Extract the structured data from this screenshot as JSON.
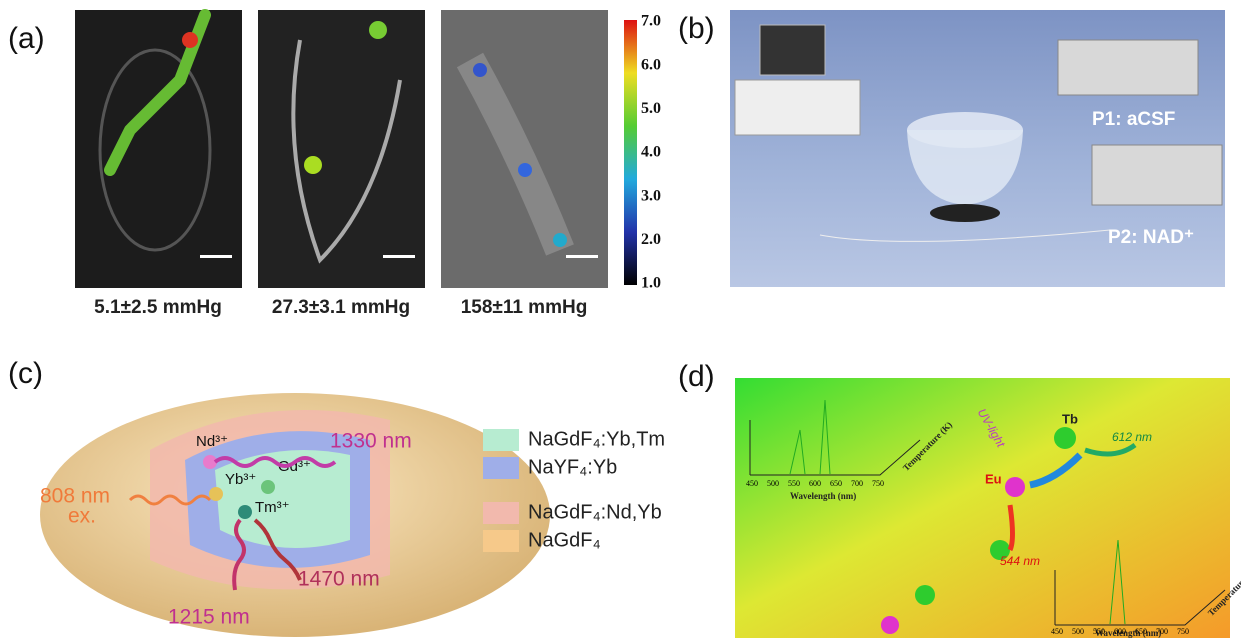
{
  "panel_a": {
    "label": "(a)",
    "captions": [
      "5.1±2.5 mmHg",
      "27.3±3.1 mmHg",
      "158±11 mmHg"
    ],
    "colorbar_ticks": [
      "7.0",
      "6.0",
      "5.0",
      "4.0",
      "3.0",
      "2.0",
      "1.0"
    ]
  },
  "panel_b": {
    "label": "(b)",
    "pumps": [
      "P1: aCSF",
      "P2: NAD⁺"
    ]
  },
  "panel_c": {
    "label": "(c)",
    "ions": [
      "Nd³⁺",
      "Yb³⁺",
      "Gd³⁺",
      "Tm³⁺"
    ],
    "excitation": [
      "808 nm",
      "ex."
    ],
    "emissions": [
      "1330 nm",
      "1215 nm",
      "1470 nm"
    ],
    "legend": [
      "NaGdF₄:Yb,Tm",
      "NaYF₄:Yb",
      "NaGdF₄:Nd,Yb",
      "NaGdF₄"
    ]
  },
  "panel_d": {
    "label": "(d)",
    "light": "UV-light",
    "ions": [
      "Tb",
      "Eu"
    ],
    "emissions": [
      "612 nm",
      "544 nm"
    ],
    "x_label": "Wavelength (nm)",
    "y_label": "Temperature (K)",
    "x_ticks": [
      "450",
      "500",
      "550",
      "600",
      "650",
      "700",
      "750"
    ]
  }
}
